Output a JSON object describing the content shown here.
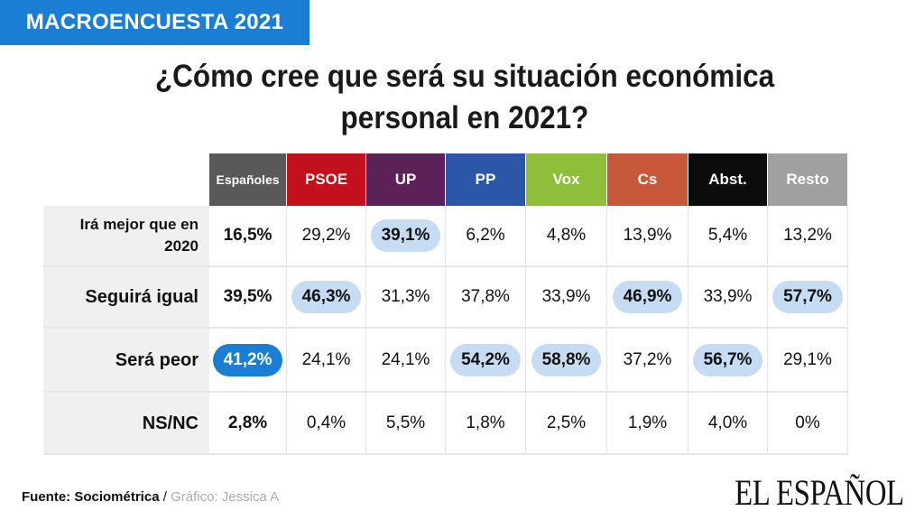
{
  "badge": "MACROENCUESTA 2021",
  "title": "¿Cómo cree que será su situación económica personal en 2021?",
  "chart_data": {
    "type": "table",
    "title": "¿Cómo cree que será su situación económica personal en 2021?",
    "columns": [
      {
        "label": "Españoles",
        "color": "#595959"
      },
      {
        "label": "PSOE",
        "color": "#c4101c"
      },
      {
        "label": "UP",
        "color": "#5c2158"
      },
      {
        "label": "PP",
        "color": "#2c56a8"
      },
      {
        "label": "Vox",
        "color": "#8fbf3a"
      },
      {
        "label": "Cs",
        "color": "#c8583a"
      },
      {
        "label": "Abst.",
        "color": "#0c0c0c"
      },
      {
        "label": "Resto",
        "color": "#a0a0a0"
      }
    ],
    "rows": [
      {
        "label": "Irá mejor que en 2020",
        "values": [
          "16,5%",
          "29,2%",
          "39,1%",
          "6,2%",
          "4,8%",
          "13,9%",
          "5,4%",
          "13,2%"
        ],
        "highlight": [
          "none",
          "none",
          "light",
          "none",
          "none",
          "none",
          "none",
          "none"
        ]
      },
      {
        "label": "Seguirá igual",
        "values": [
          "39,5%",
          "46,3%",
          "31,3%",
          "37,8%",
          "33,9%",
          "46,9%",
          "33,9%",
          "57,7%"
        ],
        "highlight": [
          "none",
          "light",
          "none",
          "none",
          "none",
          "light",
          "none",
          "light"
        ]
      },
      {
        "label": "Será peor",
        "values": [
          "41,2%",
          "24,1%",
          "24,1%",
          "54,2%",
          "58,8%",
          "37,2%",
          "56,7%",
          "29,1%"
        ],
        "highlight": [
          "strong",
          "none",
          "none",
          "light",
          "light",
          "none",
          "light",
          "none"
        ]
      },
      {
        "label": "NS/NC",
        "values": [
          "2,8%",
          "0,4%",
          "5,5%",
          "1,8%",
          "2,5%",
          "1,9%",
          "4,0%",
          "0%"
        ],
        "highlight": [
          "none",
          "none",
          "none",
          "none",
          "none",
          "none",
          "none",
          "none"
        ]
      }
    ],
    "highlight_colors": {
      "light": "#c5dcf2",
      "strong": "#1a7fd4"
    }
  },
  "footer": {
    "source": "Fuente: Sociométrica",
    "separator": " / ",
    "credit": "Gráfico: Jessica A"
  },
  "logo": "EL ESPAÑOL"
}
